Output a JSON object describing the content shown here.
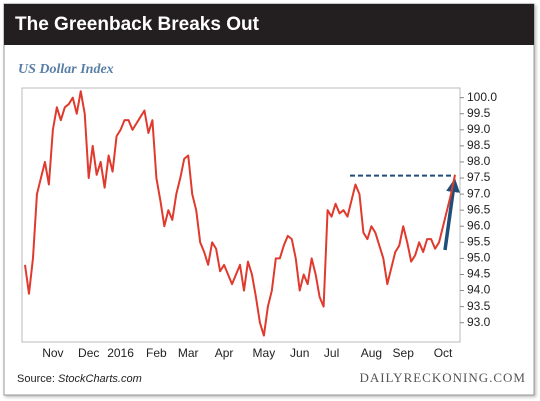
{
  "chart_data": {
    "type": "line",
    "title": "The Greenback Breaks Out",
    "subtitle": "US Dollar Index",
    "source_label": "Source:",
    "source_name": "StockCharts.com",
    "credit": "DAILYRECKONING.COM",
    "color": "#e03a2e",
    "categories": [
      null,
      null,
      null,
      null,
      null,
      null,
      null,
      "Nov",
      null,
      null,
      null,
      null,
      null,
      null,
      null,
      null,
      "Dec",
      null,
      null,
      null,
      null,
      null,
      null,
      null,
      "2016",
      null,
      null,
      null,
      null,
      null,
      null,
      null,
      null,
      "Feb",
      null,
      null,
      null,
      null,
      null,
      null,
      null,
      "Mar",
      null,
      null,
      null,
      null,
      null,
      null,
      null,
      null,
      "Apr",
      null,
      null,
      null,
      null,
      null,
      null,
      null,
      null,
      null,
      "May",
      null,
      null,
      null,
      null,
      null,
      null,
      null,
      null,
      "Jun",
      null,
      null,
      null,
      null,
      null,
      null,
      null,
      "Jul",
      null,
      null,
      null,
      null,
      null,
      null,
      null,
      null,
      null,
      "Aug",
      null,
      null,
      null,
      null,
      null,
      null,
      null,
      "Sep",
      null,
      null,
      null,
      null,
      null,
      null,
      null,
      null,
      null,
      "Oct",
      null,
      null,
      null
    ],
    "values": [
      94.8,
      93.9,
      95.0,
      97.0,
      97.5,
      98.0,
      97.3,
      99.0,
      99.7,
      99.3,
      99.7,
      99.8,
      100.0,
      99.5,
      100.2,
      99.5,
      97.5,
      98.5,
      97.6,
      98.0,
      97.2,
      98.2,
      97.7,
      98.8,
      99.0,
      99.3,
      99.3,
      99.0,
      99.2,
      99.4,
      99.6,
      98.9,
      99.3,
      97.5,
      96.8,
      96.0,
      96.5,
      96.2,
      97.0,
      97.5,
      98.1,
      98.2,
      97.0,
      96.5,
      95.5,
      95.2,
      94.8,
      95.5,
      95.3,
      94.6,
      94.8,
      94.5,
      94.2,
      94.5,
      94.8,
      94.0,
      94.9,
      94.5,
      93.8,
      93.0,
      92.6,
      93.5,
      94.0,
      95.0,
      95.0,
      95.4,
      95.7,
      95.6,
      95.0,
      94.0,
      94.5,
      94.2,
      95.0,
      94.5,
      93.8,
      93.5,
      96.5,
      96.3,
      96.7,
      96.4,
      96.5,
      96.3,
      96.8,
      97.3,
      97.0,
      95.8,
      95.6,
      96.0,
      95.8,
      95.4,
      95.0,
      94.2,
      94.7,
      95.2,
      95.4,
      96.0,
      95.5,
      94.9,
      95.1,
      95.5,
      95.2,
      95.6,
      95.6,
      95.3,
      95.5,
      96.0,
      96.5,
      97.0,
      97.6
    ],
    "ylim": [
      92.4,
      100.3
    ],
    "yticks": [
      {
        "value": 93,
        "label": "93.0"
      },
      {
        "value": 93.5,
        "label": "93.5"
      },
      {
        "value": 94,
        "label": "94.0"
      },
      {
        "value": 94.5,
        "label": "94.5"
      },
      {
        "value": 95,
        "label": "95.0"
      },
      {
        "value": 95.5,
        "label": "95.5"
      },
      {
        "value": 96,
        "label": "96.0"
      },
      {
        "value": 96.5,
        "label": "96.5"
      },
      {
        "value": 97,
        "label": "97.0"
      },
      {
        "value": 97.5,
        "label": "97.5"
      },
      {
        "value": 98,
        "label": "98.0"
      },
      {
        "value": 98.5,
        "label": "98.5"
      },
      {
        "value": 99,
        "label": "99.0"
      },
      {
        "value": 99.5,
        "label": "99.5"
      },
      {
        "value": 100,
        "label": "100.0"
      }
    ]
  }
}
